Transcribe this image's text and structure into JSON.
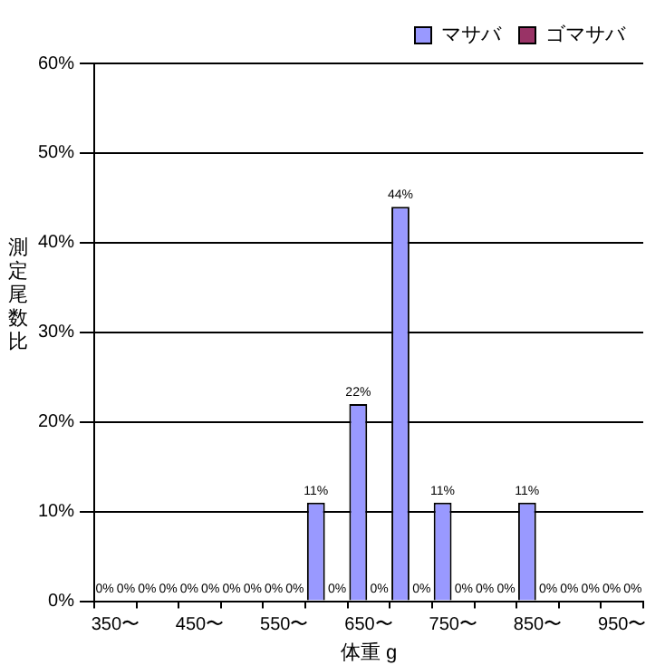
{
  "chart_data": {
    "type": "bar",
    "categories": [
      "350〜",
      null,
      "450〜",
      null,
      "550〜",
      null,
      "650〜",
      null,
      "750〜",
      null,
      "850〜",
      null,
      "950〜"
    ],
    "series": [
      {
        "name": "マサバ",
        "color": "#9999ff",
        "values": [
          0,
          0,
          0,
          0,
          0,
          11,
          22,
          44,
          11,
          0,
          11,
          0,
          0
        ],
        "value_labels": [
          "0%",
          "0%",
          "0%",
          "0%",
          "0%",
          "11%",
          "22%",
          "44%",
          "11%",
          "0%",
          "11%",
          "0%",
          "0%"
        ]
      },
      {
        "name": "ゴマサバ",
        "color": "#993366",
        "values": [
          0,
          0,
          0,
          0,
          0,
          0,
          0,
          0,
          0,
          0,
          0,
          0,
          0
        ],
        "value_labels": [
          "0%",
          "0%",
          "0%",
          "0%",
          "0%",
          "0%",
          "0%",
          "0%",
          "0%",
          "0%",
          "0%",
          "0%",
          "0%"
        ]
      }
    ],
    "xlabel": "体重 g",
    "ylabel": "測定尾数比",
    "ylim": [
      0,
      60
    ],
    "yticks": [
      {
        "value": 0,
        "label": "0%"
      },
      {
        "value": 10,
        "label": "10%"
      },
      {
        "value": 20,
        "label": "20%"
      },
      {
        "value": 30,
        "label": "30%"
      },
      {
        "value": 40,
        "label": "40%"
      },
      {
        "value": 50,
        "label": "50%"
      },
      {
        "value": 60,
        "label": "60%"
      }
    ],
    "grid": "y",
    "legend": "top right"
  }
}
